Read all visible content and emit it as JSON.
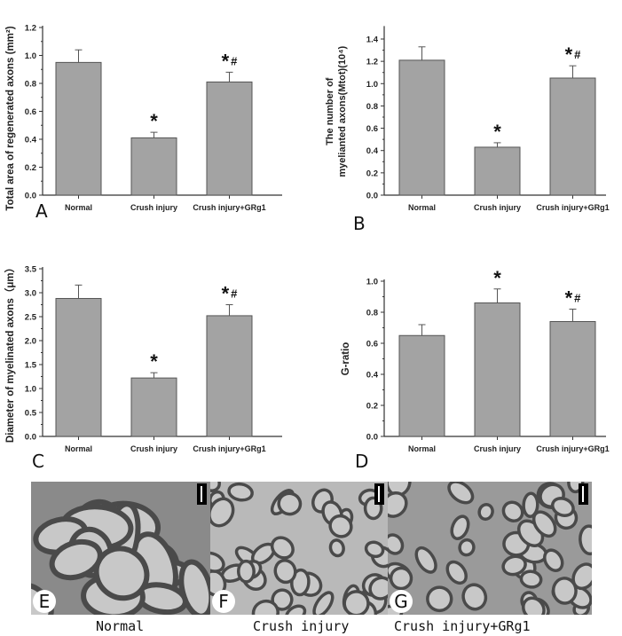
{
  "chart_data": [
    {
      "type": "bar",
      "panel": "A",
      "categories": [
        "Normal",
        "Crush injury",
        "Crush injury+GRg1"
      ],
      "values": [
        0.95,
        0.41,
        0.81
      ],
      "errors": [
        0.09,
        0.04,
        0.07
      ],
      "annotations": [
        "",
        "*",
        "*#"
      ],
      "title": "",
      "xlabel": "",
      "ylabel": "Total area of regenerated axons (mm²)",
      "ylim": [
        0,
        1.2
      ],
      "yticks": [
        "0.0",
        "0.2",
        "0.4",
        "0.6",
        "0.8",
        "1.0",
        "1.2"
      ],
      "ystep": 0.2
    },
    {
      "type": "bar",
      "panel": "B",
      "categories": [
        "Normal",
        "Crush injury",
        "Crush injury+GRg1"
      ],
      "values": [
        1.21,
        0.43,
        1.05
      ],
      "errors": [
        0.12,
        0.04,
        0.11
      ],
      "annotations": [
        "",
        "*",
        "*#"
      ],
      "title": "",
      "xlabel": "",
      "ylabel_line1": "The number of",
      "ylabel_line2": "myelianted axons(Mtot)(10⁴)",
      "ylim": [
        0,
        1.5
      ],
      "yticks": [
        "0.0",
        "0.2",
        "0.4",
        "0.6",
        "0.8",
        "1.0",
        "1.2",
        "1.4"
      ],
      "ystep": 0.2
    },
    {
      "type": "bar",
      "panel": "C",
      "categories": [
        "Normal",
        "Crush injury",
        "Crush injury+GRg1"
      ],
      "values": [
        2.88,
        1.22,
        2.52
      ],
      "errors": [
        0.28,
        0.11,
        0.23
      ],
      "annotations": [
        "",
        "*",
        "*#"
      ],
      "title": "",
      "xlabel": "",
      "ylabel": "Diameter of myelinated axons（μm）",
      "ylim": [
        0,
        3.5
      ],
      "yticks": [
        "0.0",
        "0.5",
        "1.0",
        "1.5",
        "2.0",
        "2.5",
        "3.0",
        "3.5"
      ],
      "ystep": 0.5
    },
    {
      "type": "bar",
      "panel": "D",
      "categories": [
        "Normal",
        "Crush injury",
        "Crush injury+GRg1"
      ],
      "values": [
        0.65,
        0.86,
        0.74
      ],
      "errors": [
        0.07,
        0.09,
        0.08
      ],
      "annotations": [
        "",
        "*",
        "*#"
      ],
      "title": "",
      "xlabel": "",
      "ylabel": "G-ratio",
      "ylim": [
        0,
        1.0
      ],
      "yticks": [
        "0.0",
        "0.2",
        "0.4",
        "0.6",
        "0.8",
        "1.0"
      ],
      "ystep": 0.2
    }
  ],
  "micrographs": [
    {
      "letter": "E",
      "caption": "Normal",
      "tone": "#8a8a8a"
    },
    {
      "letter": "F",
      "caption": "Crush injury",
      "tone": "#b9b9b9"
    },
    {
      "letter": "G",
      "caption": "Crush injury+GRg1",
      "tone": "#9a9a9a"
    }
  ],
  "colors": {
    "bar": "#a3a3a3",
    "bar_edge": "#555555",
    "axis": "#333333",
    "myelin": "#4a4a4a",
    "axon": "#c8c8c8"
  }
}
